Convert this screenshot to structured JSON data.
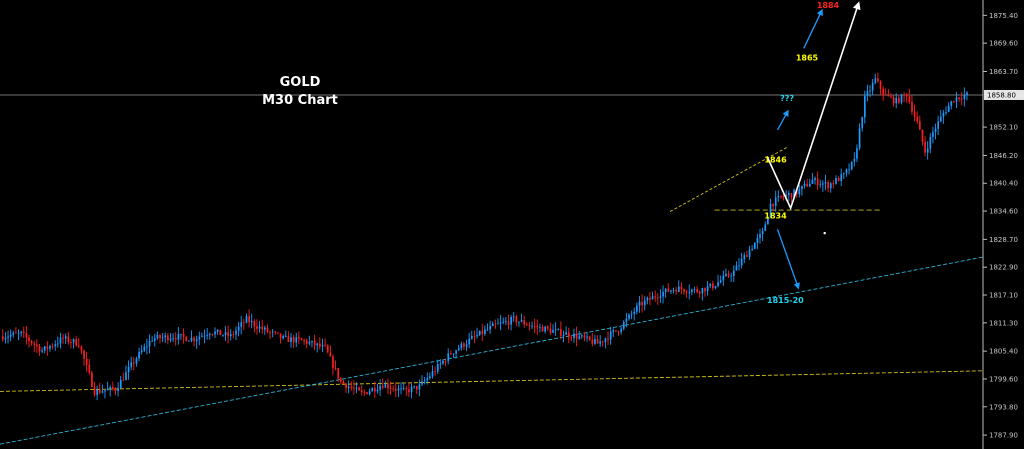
{
  "chart_data": {
    "type": "candlestick",
    "title": "GOLD",
    "subtitle": "M30 Chart",
    "ylim": [
      1785.0,
      1878.6
    ],
    "y_ticks": [
      "1875.40",
      "1869.60",
      "1863.70",
      "1852.10",
      "1846.20",
      "1840.40",
      "1834.60",
      "1828.70",
      "1822.90",
      "1817.10",
      "1811.30",
      "1805.40",
      "1799.60",
      "1793.80",
      "1787.90"
    ],
    "current_price_label": "1858.80",
    "current_price": 1858.8,
    "grid": false,
    "colors": {
      "background": "#000000",
      "bull": "#1e9bff",
      "bear": "#ff1e1e",
      "trend_yellow": "#d4c21a",
      "trend_cyan": "#2bb5d8",
      "arrow_blue": "#1e9bff",
      "arrow_white": "#ffffff",
      "label_yellow": "#ffff00",
      "label_red": "#ff2020",
      "label_cyan": "#22d3ee",
      "price_line": "#9a9a9a"
    },
    "annotations": [
      {
        "text": "1884",
        "color": "label_red"
      },
      {
        "text": "1865",
        "color": "label_yellow"
      },
      {
        "text": "???",
        "color": "label_cyan"
      },
      {
        "text": "1846",
        "color": "label_yellow"
      },
      {
        "text": "1834",
        "color": "label_yellow"
      },
      {
        "text": "1815-20",
        "color": "label_cyan"
      }
    ],
    "series": [
      {
        "type": "ohlc_path",
        "keypoints": [
          [
            0,
            1808.5
          ],
          [
            8,
            1809.0
          ],
          [
            16,
            1805.5
          ],
          [
            24,
            1808.0
          ],
          [
            30,
            1807.0
          ],
          [
            36,
            1797.0
          ],
          [
            44,
            1797.5
          ],
          [
            52,
            1804.0
          ],
          [
            58,
            1808.0
          ],
          [
            66,
            1808.5
          ],
          [
            74,
            1808.0
          ],
          [
            80,
            1809.5
          ],
          [
            88,
            1808.5
          ],
          [
            94,
            1812.0
          ],
          [
            100,
            1810.0
          ],
          [
            108,
            1808.0
          ],
          [
            116,
            1807.5
          ],
          [
            124,
            1806.0
          ],
          [
            130,
            1799.0
          ],
          [
            138,
            1796.5
          ],
          [
            146,
            1798.5
          ],
          [
            154,
            1797.0
          ],
          [
            160,
            1798.0
          ],
          [
            166,
            1801.5
          ],
          [
            172,
            1805.0
          ],
          [
            180,
            1808.0
          ],
          [
            188,
            1810.5
          ],
          [
            196,
            1812.0
          ],
          [
            204,
            1810.5
          ],
          [
            212,
            1809.5
          ],
          [
            220,
            1808.5
          ],
          [
            228,
            1807.0
          ],
          [
            236,
            1810.0
          ],
          [
            244,
            1815.0
          ],
          [
            252,
            1817.5
          ],
          [
            258,
            1818.5
          ],
          [
            266,
            1818.0
          ],
          [
            272,
            1819.0
          ],
          [
            280,
            1822.0
          ],
          [
            286,
            1826.5
          ],
          [
            291,
            1830.0
          ],
          [
            294,
            1836.0
          ],
          [
            298,
            1837.5
          ],
          [
            304,
            1838.5
          ],
          [
            310,
            1841.0
          ],
          [
            316,
            1840.0
          ],
          [
            322,
            1842.0
          ],
          [
            326,
            1845.0
          ],
          [
            330,
            1858.0
          ],
          [
            334,
            1862.0
          ],
          [
            338,
            1858.5
          ],
          [
            342,
            1857.5
          ],
          [
            346,
            1859.0
          ],
          [
            350,
            1853.0
          ],
          [
            353,
            1847.0
          ],
          [
            356,
            1851.0
          ],
          [
            360,
            1855.0
          ],
          [
            364,
            1858.0
          ],
          [
            368,
            1858.8
          ]
        ]
      }
    ],
    "trendlines": [
      {
        "name": "yellow-long",
        "color": "trend_yellow",
        "dashed": true
      },
      {
        "name": "cyan-long",
        "color": "trend_cyan",
        "dashed": true
      },
      {
        "name": "yellow-short",
        "color": "trend_yellow",
        "dashed": true
      },
      {
        "name": "yellow-horizontal-1834",
        "color": "trend_yellow",
        "dashed": true
      }
    ]
  }
}
